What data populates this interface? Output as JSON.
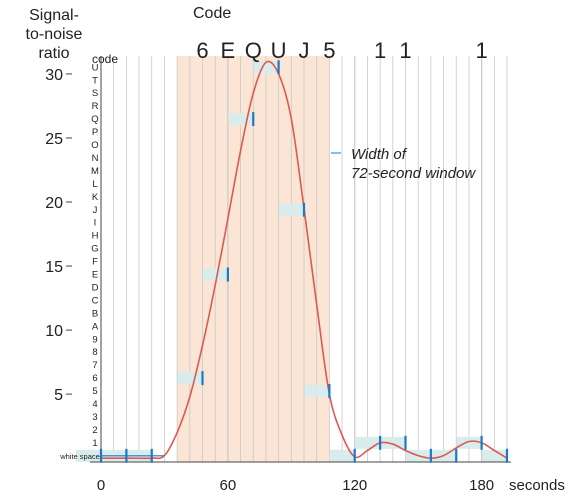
{
  "chart_data": {
    "type": "line",
    "ylabel": "Signal-to-noise ratio",
    "ylabel_lines": [
      "Signal-",
      "to-noise",
      "ratio"
    ],
    "xlabel": "seconds",
    "code_title": "Code",
    "code_axis_label": "code",
    "decoded_code": "6 E Q U J 5   1 1   1",
    "decoded_chars": [
      {
        "char": "6",
        "x": 48
      },
      {
        "char": "E",
        "x": 60
      },
      {
        "char": "Q",
        "x": 72
      },
      {
        "char": "U",
        "x": 84
      },
      {
        "char": "J",
        "x": 96
      },
      {
        "char": "5",
        "x": 108
      },
      {
        "char": "1",
        "x": 132
      },
      {
        "char": "1",
        "x": 144
      },
      {
        "char": "1",
        "x": 180
      }
    ],
    "window_annotation_lines": [
      "Width of",
      "72-second window"
    ],
    "xlim": [
      0,
      192
    ],
    "ylim": [
      -0.3,
      31.4
    ],
    "x_ticks": [
      0,
      60,
      120,
      180
    ],
    "y_ticks": [
      5,
      10,
      15,
      20,
      25,
      30
    ],
    "grid": true,
    "highlight_window": [
      36,
      108
    ],
    "code_levels": [
      "white space",
      "1",
      "2",
      "3",
      "4",
      "5",
      "6",
      "7",
      "8",
      "9",
      "A",
      "B",
      "C",
      "D",
      "E",
      "F",
      "G",
      "H",
      "I",
      "J",
      "K",
      "L",
      "M",
      "N",
      "O",
      "P",
      "Q",
      "R",
      "S",
      "T",
      "U"
    ],
    "series": [
      {
        "x": [
          0,
          12,
          24,
          30,
          36,
          42,
          48,
          54,
          60,
          66,
          72,
          78,
          84,
          90,
          96,
          102,
          108,
          114,
          120,
          126,
          132,
          138,
          144,
          150,
          156,
          162,
          168,
          174,
          180,
          186,
          192
        ],
        "y": [
          0,
          0,
          0,
          0.2,
          2.0,
          4.8,
          8.8,
          13.5,
          18.7,
          24.0,
          28.5,
          30.9,
          30.0,
          26.5,
          19.5,
          12.0,
          5.0,
          1.8,
          0.1,
          0.6,
          1.2,
          1.1,
          0.6,
          0.2,
          0.0,
          0.2,
          0.8,
          1.3,
          1.2,
          0.6,
          0.0
        ]
      }
    ],
    "samples": [
      {
        "x": 0,
        "code": "white space"
      },
      {
        "x": 12,
        "code": "white space"
      },
      {
        "x": 24,
        "code": "white space"
      },
      {
        "x": 48,
        "code": "6"
      },
      {
        "x": 60,
        "code": "E"
      },
      {
        "x": 72,
        "code": "Q"
      },
      {
        "x": 84,
        "code": "U"
      },
      {
        "x": 96,
        "code": "J"
      },
      {
        "x": 108,
        "code": "5"
      },
      {
        "x": 120,
        "code": "white space"
      },
      {
        "x": 132,
        "code": "1"
      },
      {
        "x": 144,
        "code": "1"
      },
      {
        "x": 156,
        "code": "white space"
      },
      {
        "x": 168,
        "code": "white space"
      },
      {
        "x": 180,
        "code": "1"
      },
      {
        "x": 192,
        "code": "white space"
      }
    ],
    "colors": {
      "curve": "#e0574f",
      "marker": "#1e78c8",
      "window": "#fbe6d6",
      "band": "#d9ecec",
      "grid": "#c8c8c8",
      "axis": "#444444"
    }
  }
}
